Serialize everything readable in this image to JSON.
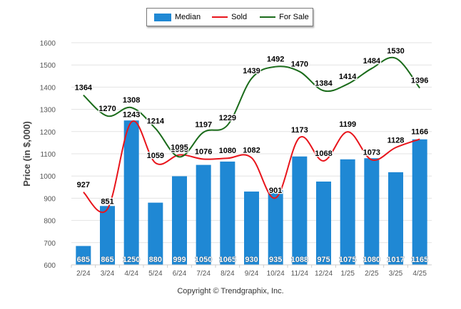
{
  "chart_data": {
    "type": "bar",
    "ylabel": "Price (in $,000)",
    "ylim": [
      600,
      1600
    ],
    "yticks": [
      600,
      700,
      800,
      900,
      1000,
      1100,
      1200,
      1300,
      1400,
      1500,
      1600
    ],
    "categories": [
      "2/24",
      "3/24",
      "4/24",
      "5/24",
      "6/24",
      "7/24",
      "8/24",
      "9/24",
      "10/24",
      "11/24",
      "12/24",
      "1/25",
      "2/25",
      "3/25",
      "4/25"
    ],
    "series": [
      {
        "name": "Median",
        "type": "bar",
        "color": "#1f88d4",
        "values": [
          685,
          865,
          1250,
          880,
          999,
          1050,
          1065,
          930,
          935,
          1088,
          975,
          1075,
          1080,
          1017,
          1165
        ]
      },
      {
        "name": "Sold",
        "type": "line",
        "color": "#e8141b",
        "values": [
          927,
          851,
          1243,
          1059,
          1095,
          1076,
          1080,
          1082,
          901,
          1173,
          1068,
          1199,
          1073,
          1128,
          1166
        ]
      },
      {
        "name": "For Sale",
        "type": "line",
        "color": "#1a6b1a",
        "values": [
          1364,
          1270,
          1308,
          1214,
          1086,
          1197,
          1229,
          1439,
          1492,
          1470,
          1384,
          1414,
          1484,
          1530,
          1396
        ]
      }
    ],
    "grid": true,
    "legend": "top-center"
  },
  "footer": "Copyright © Trendgraphix, Inc."
}
